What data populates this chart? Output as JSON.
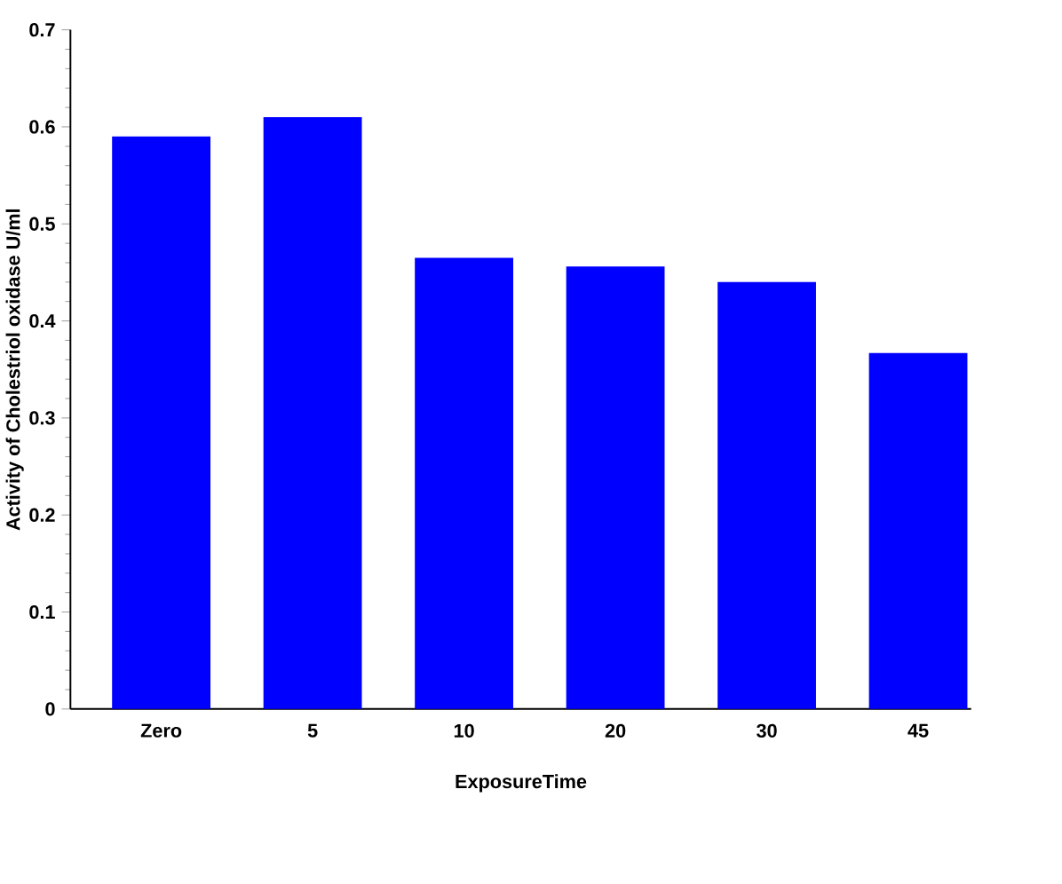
{
  "chart_data": {
    "type": "bar",
    "xlabel": "ExposureTime",
    "ylabel": "Activity of Cholestriol oxidase  U/ml",
    "categories": [
      "Zero",
      "5",
      "10",
      "20",
      "30",
      "45"
    ],
    "values": [
      0.59,
      0.61,
      0.465,
      0.456,
      0.44,
      0.367
    ],
    "color": "#0000ff",
    "ylim": [
      0,
      0.7
    ],
    "yticks": [
      0,
      0.1,
      0.2,
      0.3,
      0.4,
      0.5,
      0.6,
      0.7
    ],
    "grid": false
  }
}
